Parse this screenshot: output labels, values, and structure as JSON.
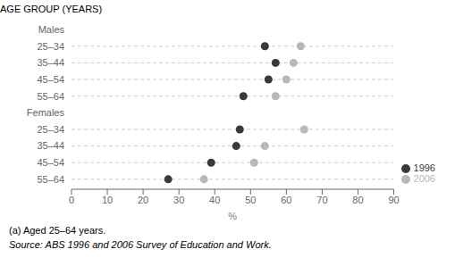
{
  "chart_data": {
    "type": "scatter",
    "orientation": "horizontal",
    "xlabel": "%",
    "ylabel": "AGE GROUP (YEARS)",
    "categories": [
      "Males",
      "25–34",
      "35–44",
      "45–54",
      "55–64",
      "Females",
      "25–34",
      "35–44",
      "45–54",
      "55–64"
    ],
    "series": [
      {
        "name": "1996",
        "color": "#3a3a3a",
        "values": [
          null,
          54,
          57,
          55,
          48,
          null,
          47,
          46,
          39,
          27
        ]
      },
      {
        "name": "2006",
        "color": "#b8b8b8",
        "values": [
          null,
          64,
          62,
          60,
          57,
          null,
          65,
          54,
          51,
          37
        ]
      }
    ],
    "xlim": [
      0,
      90
    ],
    "xticks": [
      0,
      10,
      20,
      30,
      40,
      50,
      60,
      70,
      80,
      90
    ],
    "grid": true,
    "legend": "lower right",
    "annotations": [
      "(a) Aged 25–64 years.",
      "Source: ABS 1996 and 2006 Survey of Education and Work."
    ]
  }
}
